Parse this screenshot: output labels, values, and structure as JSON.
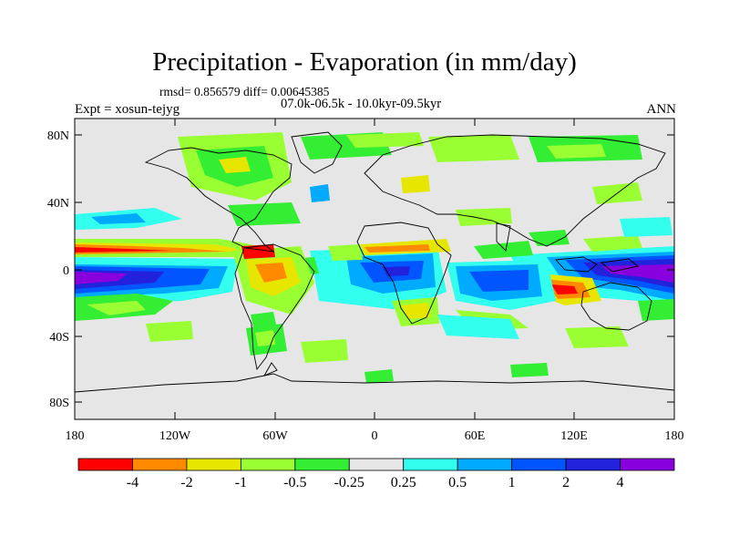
{
  "header": {
    "title": "Precipitation - Evaporation (in mm/day)",
    "stats": "rmsd= 0.856579 diff= 0.00645385",
    "period": "07.0k-06.5k - 10.0kyr-09.5kyr",
    "experiment": "Expt = xosun-tejyg",
    "season": "ANN"
  },
  "axes": {
    "lat_ticks": [
      "80N",
      "40N",
      "0",
      "40S",
      "80S"
    ],
    "lon_ticks": [
      "180",
      "120W",
      "60W",
      "0",
      "60E",
      "120E",
      "180"
    ]
  },
  "colorbar": {
    "labels": [
      "-4",
      "-2",
      "-1",
      "-0.5",
      "-0.25",
      "0.25",
      "0.5",
      "1",
      "2",
      "4"
    ],
    "colors": [
      "#ff0000",
      "#ff8a00",
      "#e6e600",
      "#99ff33",
      "#33ee33",
      "#e6e6e6",
      "#33ffee",
      "#00aaff",
      "#0055ff",
      "#2222dd",
      "#8800dd"
    ]
  },
  "colors": {
    "land_sea_background": "#e6e6e6",
    "coastline": "#000000"
  }
}
